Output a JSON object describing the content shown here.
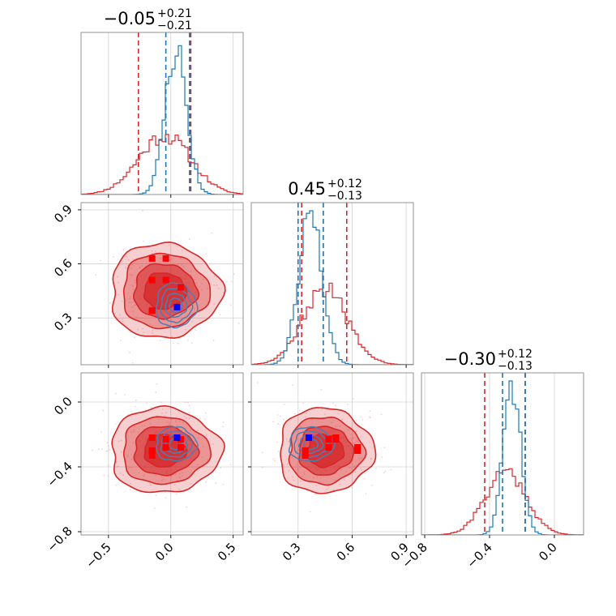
{
  "chart_data": {
    "type": "corner",
    "parameters": [
      {
        "title": {
          "median": "−0.05",
          "plus": "+0.21",
          "minus": "−0.21"
        },
        "range": [
          -0.72,
          0.58
        ],
        "ticks": [
          -0.5,
          0.0,
          0.5
        ],
        "tick_labels": [
          "−0.5",
          "0.0",
          "0.5"
        ]
      },
      {
        "title": {
          "median": "0.45",
          "plus": "+0.12",
          "minus": "−0.13"
        },
        "range": [
          0.04,
          0.94
        ],
        "ticks": [
          0.3,
          0.6,
          0.9
        ],
        "tick_labels": [
          "0.3",
          "0.6",
          "0.9"
        ]
      },
      {
        "title": {
          "median": "−0.30",
          "plus": "+0.12",
          "minus": "−0.13"
        },
        "range": [
          -0.82,
          0.18
        ],
        "ticks": [
          -0.8,
          -0.4,
          0.0
        ],
        "tick_labels": [
          "−0.8",
          "−0.4",
          "0.0"
        ]
      }
    ],
    "series": [
      {
        "color": "#d62728",
        "means": [
          -0.05,
          0.45,
          -0.3
        ],
        "sigmas": [
          0.21,
          0.125,
          0.125
        ],
        "quantiles": [
          [
            -0.26,
            0.16
          ],
          [
            0.32,
            0.57
          ],
          [
            -0.43,
            -0.18
          ]
        ],
        "fill": true
      },
      {
        "color": "#1f77b4",
        "means": [
          0.04,
          0.37,
          -0.26
        ],
        "sigmas": [
          0.085,
          0.065,
          0.055
        ],
        "quantiles": [
          [
            -0.04,
            0.15
          ],
          [
            0.3,
            0.44
          ],
          [
            -0.32,
            -0.18
          ]
        ],
        "fill": false
      }
    ],
    "markers": {
      "red": [
        [
          -0.04,
          0.63,
          -0.28
        ],
        [
          -0.15,
          0.51,
          -0.22
        ],
        [
          0.08,
          0.47,
          -0.23
        ],
        [
          -0.15,
          0.34,
          -0.3
        ],
        [
          -0.15,
          0.34,
          -0.33
        ],
        [
          0.08,
          0.47,
          -0.28
        ],
        [
          -0.04,
          0.51,
          -0.23
        ],
        [
          -0.15,
          0.63,
          -0.3
        ]
      ],
      "blue": [
        [
          0.05,
          0.36,
          -0.22
        ]
      ]
    },
    "grid": true
  }
}
